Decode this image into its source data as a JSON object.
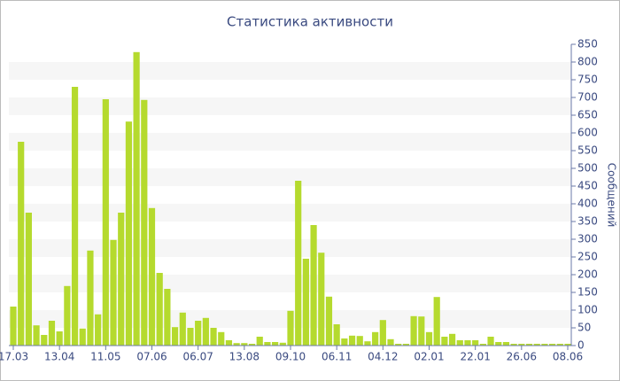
{
  "chart_data": {
    "type": "bar",
    "title": "Статистика активности",
    "y_label": "Сообщений",
    "categories": [
      "17.03",
      null,
      null,
      null,
      null,
      null,
      "13.04",
      null,
      null,
      null,
      null,
      null,
      "11.05",
      null,
      null,
      null,
      null,
      null,
      "07.06",
      null,
      null,
      null,
      null,
      null,
      "06.07",
      null,
      null,
      null,
      null,
      null,
      "13.08",
      null,
      null,
      null,
      null,
      null,
      "09.10",
      null,
      null,
      null,
      null,
      null,
      "06.11",
      null,
      null,
      null,
      null,
      null,
      "04.12",
      null,
      null,
      null,
      null,
      null,
      "02.01",
      null,
      null,
      null,
      null,
      null,
      "22.01",
      null,
      null,
      null,
      null,
      null,
      "26.06",
      null,
      null,
      null,
      null,
      null,
      "08.06"
    ],
    "values": [
      110,
      575,
      375,
      57,
      30,
      70,
      40,
      168,
      730,
      48,
      268,
      88,
      695,
      298,
      375,
      632,
      828,
      693,
      388,
      205,
      160,
      52,
      93,
      50,
      70,
      78,
      50,
      38,
      15,
      7,
      7,
      5,
      25,
      10,
      10,
      8,
      98,
      465,
      245,
      340,
      262,
      138,
      60,
      20,
      28,
      27,
      12,
      38,
      72,
      18,
      5,
      5,
      83,
      82,
      38,
      137,
      25,
      33,
      15,
      15,
      15,
      5,
      25,
      10,
      10,
      5,
      5,
      5,
      5,
      5,
      5,
      5,
      5
    ],
    "color": "#b5da2e",
    "ylim": [
      0,
      850
    ],
    "yticks": [
      0,
      50,
      100,
      150,
      200,
      250,
      300,
      350,
      400,
      450,
      500,
      550,
      600,
      650,
      700,
      750,
      800,
      850
    ],
    "grid": "bands",
    "y_axis_side": "right"
  }
}
